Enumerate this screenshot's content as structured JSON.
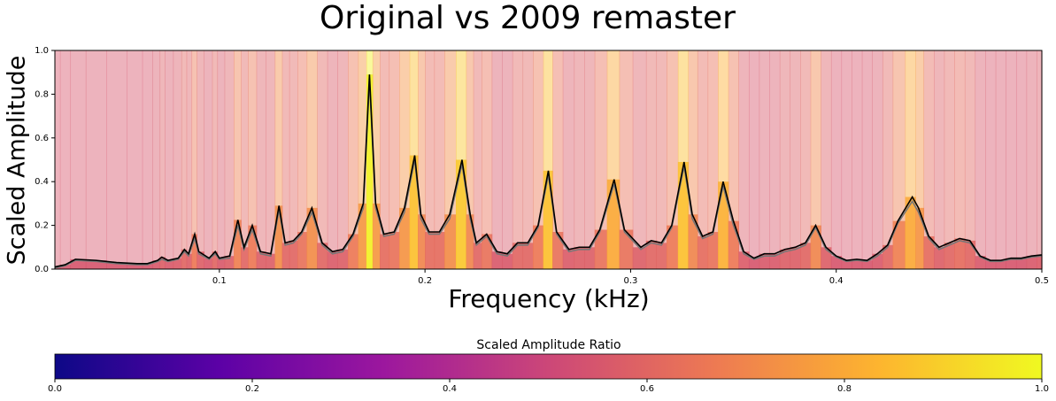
{
  "chart_data": {
    "type": "spectrum",
    "title": "Original vs 2009 remaster",
    "x_label": "Frequency (kHz)",
    "y_label": "Scaled Amplitude",
    "xlim": [
      0.02,
      0.5
    ],
    "ylim": [
      0,
      1
    ],
    "xticks": [
      0.1,
      0.2,
      0.3,
      0.4,
      0.5
    ],
    "yticks": [
      {
        "value": 0,
        "label": "0.0"
      },
      0.2,
      0.4,
      0.6,
      0.8,
      {
        "value": 1,
        "label": "1.0"
      }
    ],
    "x": [
      0.02,
      0.025,
      0.03,
      0.04,
      0.05,
      0.06,
      0.065,
      0.07,
      0.072,
      0.075,
      0.08,
      0.083,
      0.085,
      0.088,
      0.09,
      0.095,
      0.098,
      0.1,
      0.105,
      0.109,
      0.112,
      0.116,
      0.12,
      0.125,
      0.129,
      0.132,
      0.136,
      0.14,
      0.145,
      0.15,
      0.155,
      0.16,
      0.165,
      0.17,
      0.173,
      0.176,
      0.18,
      0.185,
      0.19,
      0.195,
      0.198,
      0.202,
      0.207,
      0.212,
      0.218,
      0.222,
      0.225,
      0.23,
      0.235,
      0.24,
      0.245,
      0.25,
      0.255,
      0.26,
      0.264,
      0.27,
      0.275,
      0.28,
      0.285,
      0.292,
      0.297,
      0.305,
      0.31,
      0.315,
      0.32,
      0.326,
      0.33,
      0.335,
      0.34,
      0.345,
      0.35,
      0.355,
      0.36,
      0.365,
      0.37,
      0.375,
      0.38,
      0.385,
      0.39,
      0.395,
      0.4,
      0.405,
      0.41,
      0.415,
      0.42,
      0.425,
      0.43,
      0.437,
      0.44,
      0.445,
      0.45,
      0.455,
      0.46,
      0.465,
      0.47,
      0.475,
      0.48,
      0.485,
      0.49,
      0.495,
      0.5
    ],
    "series": [
      {
        "color": "#000000",
        "values": [
          0.01,
          0.02,
          0.045,
          0.04,
          0.03,
          0.025,
          0.025,
          0.04,
          0.055,
          0.04,
          0.05,
          0.09,
          0.07,
          0.16,
          0.08,
          0.05,
          0.08,
          0.05,
          0.06,
          0.225,
          0.1,
          0.2,
          0.08,
          0.07,
          0.29,
          0.12,
          0.13,
          0.17,
          0.28,
          0.12,
          0.08,
          0.09,
          0.16,
          0.3,
          0.89,
          0.3,
          0.16,
          0.17,
          0.28,
          0.52,
          0.25,
          0.17,
          0.17,
          0.25,
          0.5,
          0.25,
          0.12,
          0.16,
          0.08,
          0.07,
          0.12,
          0.12,
          0.2,
          0.45,
          0.17,
          0.09,
          0.1,
          0.1,
          0.18,
          0.41,
          0.18,
          0.1,
          0.13,
          0.12,
          0.2,
          0.49,
          0.25,
          0.15,
          0.17,
          0.4,
          0.22,
          0.08,
          0.05,
          0.07,
          0.07,
          0.09,
          0.1,
          0.12,
          0.2,
          0.1,
          0.06,
          0.04,
          0.045,
          0.04,
          0.07,
          0.11,
          0.22,
          0.33,
          0.28,
          0.15,
          0.1,
          0.12,
          0.14,
          0.13,
          0.06,
          0.04,
          0.04,
          0.05,
          0.05,
          0.06,
          0.065
        ]
      },
      {
        "color": "#777777",
        "values": [
          0.005,
          0.015,
          0.04,
          0.035,
          0.025,
          0.02,
          0.02,
          0.035,
          0.045,
          0.035,
          0.045,
          0.08,
          0.06,
          0.14,
          0.07,
          0.045,
          0.07,
          0.045,
          0.05,
          0.2,
          0.09,
          0.18,
          0.07,
          0.06,
          0.27,
          0.11,
          0.12,
          0.16,
          0.26,
          0.11,
          0.07,
          0.08,
          0.15,
          0.28,
          0.86,
          0.28,
          0.15,
          0.16,
          0.26,
          0.5,
          0.23,
          0.16,
          0.16,
          0.23,
          0.48,
          0.23,
          0.11,
          0.15,
          0.07,
          0.06,
          0.11,
          0.11,
          0.19,
          0.43,
          0.16,
          0.08,
          0.09,
          0.09,
          0.17,
          0.39,
          0.17,
          0.09,
          0.12,
          0.11,
          0.19,
          0.47,
          0.23,
          0.14,
          0.16,
          0.38,
          0.2,
          0.07,
          0.045,
          0.06,
          0.06,
          0.08,
          0.09,
          0.11,
          0.19,
          0.09,
          0.055,
          0.035,
          0.04,
          0.035,
          0.06,
          0.1,
          0.21,
          0.31,
          0.26,
          0.14,
          0.09,
          0.11,
          0.13,
          0.12,
          0.055,
          0.035,
          0.035,
          0.045,
          0.045,
          0.055,
          0.06
        ]
      }
    ],
    "ratio": [
      0.55,
      0.55,
      0.55,
      0.55,
      0.55,
      0.55,
      0.55,
      0.56,
      0.58,
      0.56,
      0.57,
      0.6,
      0.58,
      0.66,
      0.58,
      0.56,
      0.6,
      0.56,
      0.58,
      0.68,
      0.6,
      0.66,
      0.58,
      0.58,
      0.72,
      0.6,
      0.6,
      0.64,
      0.72,
      0.6,
      0.57,
      0.58,
      0.66,
      0.75,
      0.98,
      0.75,
      0.62,
      0.64,
      0.74,
      0.86,
      0.7,
      0.62,
      0.62,
      0.72,
      0.88,
      0.7,
      0.6,
      0.64,
      0.56,
      0.56,
      0.6,
      0.6,
      0.66,
      0.86,
      0.64,
      0.57,
      0.58,
      0.58,
      0.64,
      0.8,
      0.64,
      0.58,
      0.6,
      0.6,
      0.66,
      0.86,
      0.7,
      0.62,
      0.64,
      0.82,
      0.66,
      0.57,
      0.55,
      0.56,
      0.56,
      0.58,
      0.58,
      0.6,
      0.7,
      0.58,
      0.55,
      0.55,
      0.55,
      0.55,
      0.56,
      0.6,
      0.68,
      0.8,
      0.74,
      0.62,
      0.58,
      0.6,
      0.62,
      0.6,
      0.56,
      0.55,
      0.55,
      0.55,
      0.55,
      0.56,
      0.57
    ],
    "colormap": [
      "#0d0887",
      "#5c01a6",
      "#9c179e",
      "#cc4778",
      "#ed7953",
      "#fdb42f",
      "#f0f921"
    ],
    "colorbar": {
      "label": "Scaled Amplitude Ratio",
      "lim": [
        0,
        1
      ],
      "ticks": [
        {
          "value": 0,
          "label": "0.0"
        },
        0.2,
        0.4,
        0.6,
        0.8,
        {
          "value": 1,
          "label": "1.0"
        }
      ]
    }
  }
}
